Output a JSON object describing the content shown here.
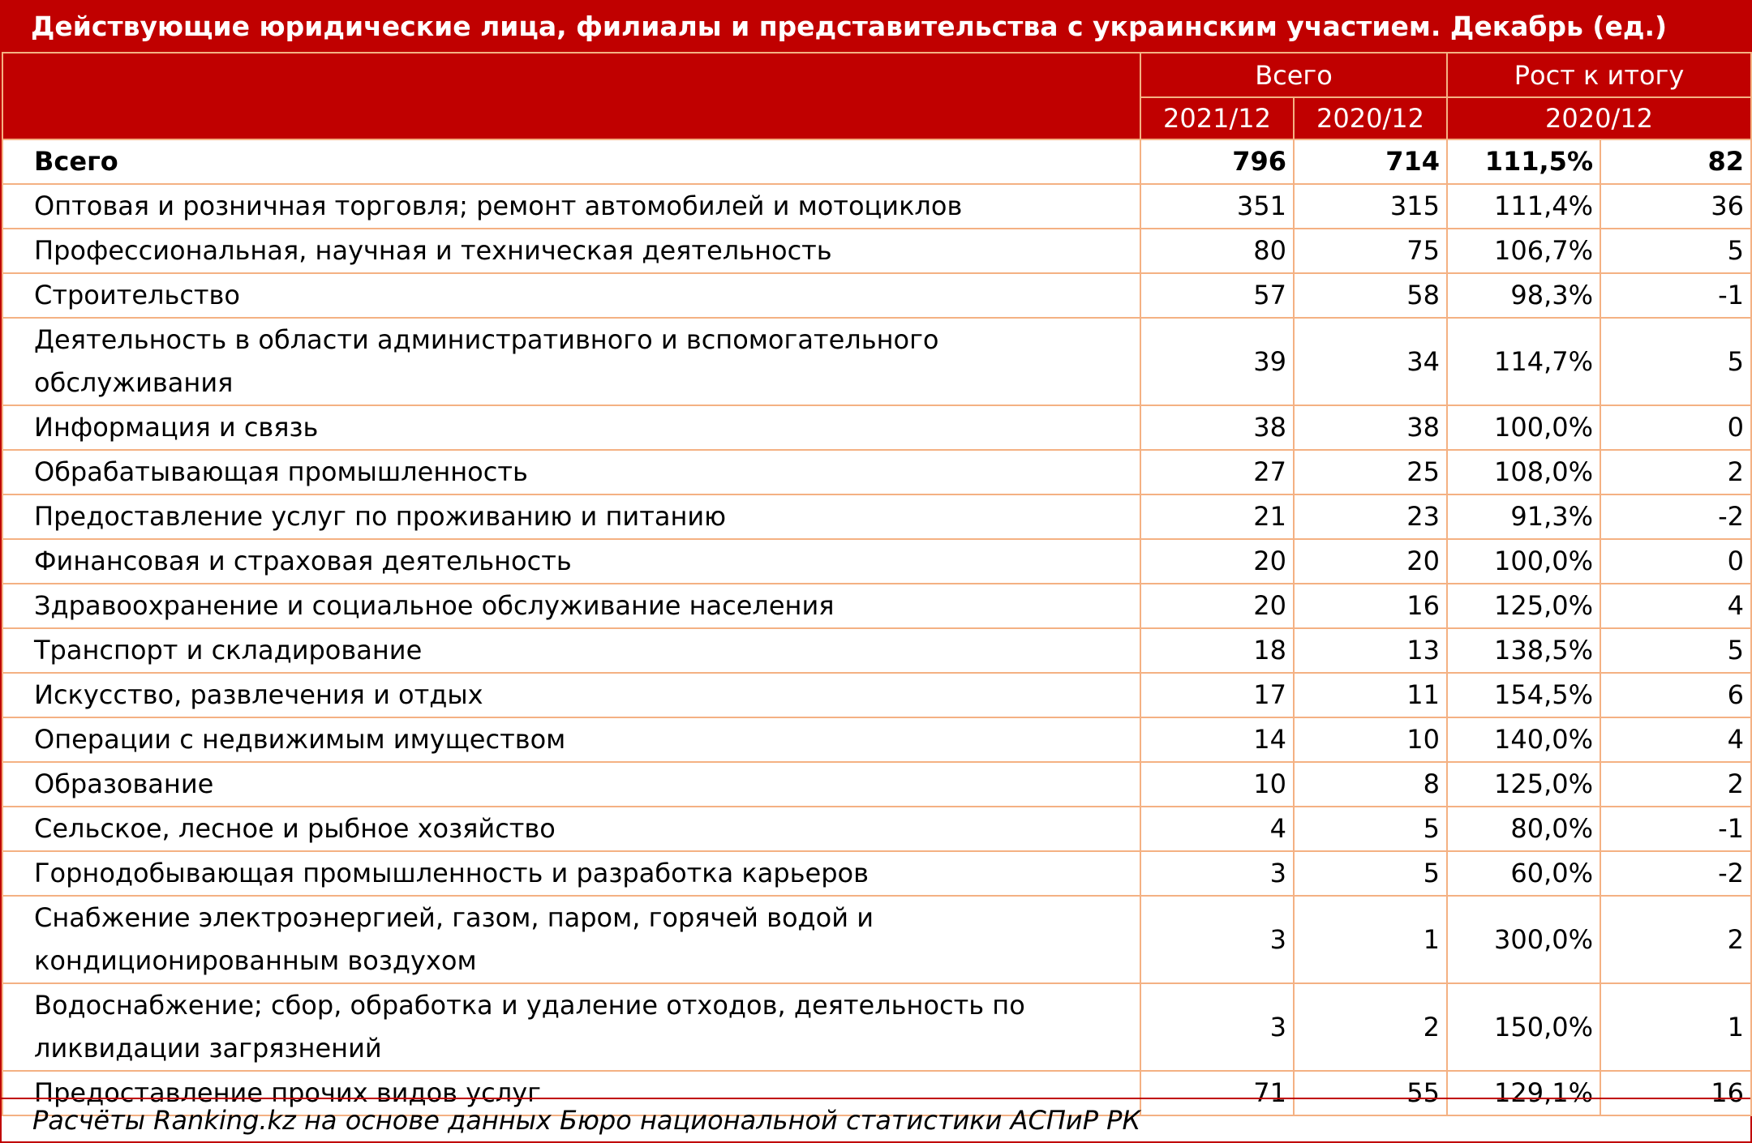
{
  "title": "Действующие юридические лица, филиалы и представительства с украинским участием. Декабрь (ед.)",
  "header": {
    "total": "Всего",
    "growth": "Рост к итогу",
    "col_2021": "2021/12",
    "col_2020": "2020/12",
    "growth_period": "2020/12"
  },
  "table": {
    "rows": [
      [
        "Всего",
        796,
        714,
        "111,5%",
        82
      ],
      [
        "Оптовая и розничная торговля; ремонт автомобилей и мотоциклов",
        351,
        315,
        "111,4%",
        36
      ],
      [
        "Профессиональная, научная и техническая деятельность",
        80,
        75,
        "106,7%",
        5
      ],
      [
        "Строительство",
        57,
        58,
        "98,3%",
        -1
      ],
      [
        "Деятельность в области административного и вспомогательного обслуживания",
        39,
        34,
        "114,7%",
        5
      ],
      [
        "Информация и связь",
        38,
        38,
        "100,0%",
        0
      ],
      [
        "Обрабатывающая промышленность",
        27,
        25,
        "108,0%",
        2
      ],
      [
        "Предоставление услуг по проживанию и питанию",
        21,
        23,
        "91,3%",
        -2
      ],
      [
        "Финансовая и страховая деятельность",
        20,
        20,
        "100,0%",
        0
      ],
      [
        "Здравоохранение и социальное обслуживание населения",
        20,
        16,
        "125,0%",
        4
      ],
      [
        "Транспорт и складирование",
        18,
        13,
        "138,5%",
        5
      ],
      [
        "Искусство, развлечения и отдых",
        17,
        11,
        "154,5%",
        6
      ],
      [
        "Операции с недвижимым имуществом",
        14,
        10,
        "140,0%",
        4
      ],
      [
        "Образование",
        10,
        8,
        "125,0%",
        2
      ],
      [
        "Сельское, лесное и рыбное хозяйство",
        4,
        5,
        "80,0%",
        -1
      ],
      [
        "Горнодобывающая промышленность и разработка карьеров",
        3,
        5,
        "60,0%",
        -2
      ],
      [
        "Снабжение электроэнергией, газом, паром, горячей водой и кондиционированным воздухом",
        3,
        1,
        "300,0%",
        2
      ],
      [
        "Водоснабжение; сбор, обработка и удаление отходов, деятельность по ликвидации загрязнений",
        3,
        2,
        "150,0%",
        1
      ],
      [
        "Предоставление прочих видов услуг",
        71,
        55,
        "129,1%",
        16
      ]
    ]
  },
  "footer": "Расчёты Ranking.kz на основе данных Бюро национальной статистики АСПиР РК"
}
